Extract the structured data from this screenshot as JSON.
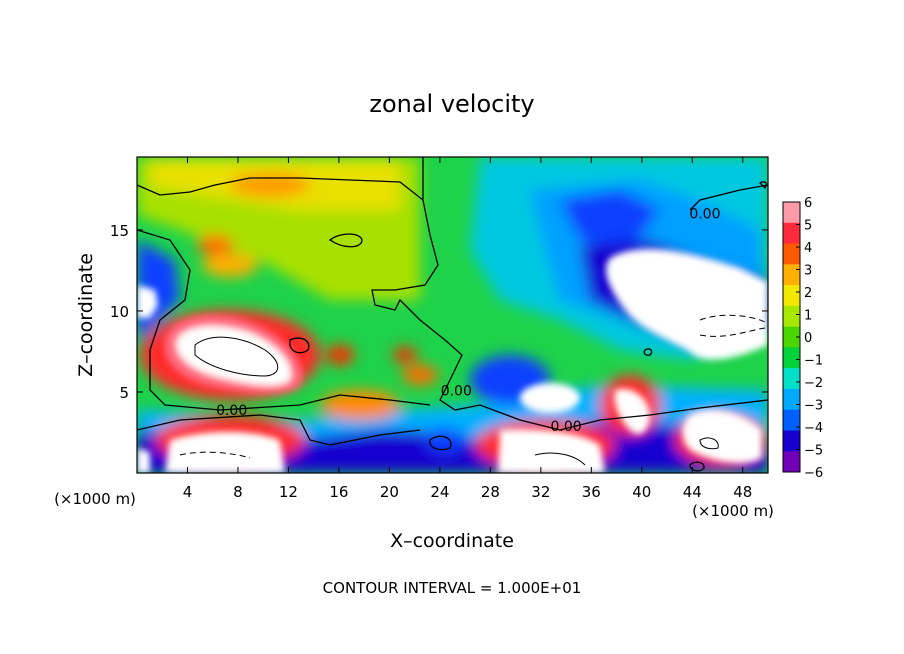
{
  "chart_data": {
    "type": "heatmap",
    "title": "zonal velocity",
    "xlabel": "X–coordinate",
    "ylabel": "Z–coordinate",
    "x_unit_left": "(×1000 m)",
    "x_unit_right": "(×1000 m)",
    "footer": "CONTOUR INTERVAL = 1.000E+01",
    "xlim": [
      0,
      50
    ],
    "ylim": [
      0,
      19.5
    ],
    "x_ticks": [
      4,
      8,
      12,
      16,
      20,
      24,
      28,
      32,
      36,
      40,
      44,
      48
    ],
    "y_ticks": [
      5,
      10,
      15
    ],
    "x_tick_labels": [
      "4",
      "8",
      "12",
      "16",
      "20",
      "24",
      "28",
      "32",
      "36",
      "40",
      "44",
      "48"
    ],
    "y_tick_labels": [
      "5",
      "10",
      "15"
    ],
    "colorbar": {
      "range": [
        -6,
        6
      ],
      "tick_labels": [
        "6",
        "5",
        "4",
        "3",
        "2",
        "1",
        "0",
        "−1",
        "−2",
        "−3",
        "−4",
        "−5",
        "−6"
      ],
      "colors": [
        "#ff9aa8",
        "#ff2a3a",
        "#ff5a00",
        "#ffb000",
        "#f2e800",
        "#a8e800",
        "#4cd600",
        "#00d23c",
        "#00e0c8",
        "#00a8ff",
        "#0060ff",
        "#1800d0",
        "#7000b8"
      ]
    },
    "contour_labels": [
      {
        "text": "0.00",
        "x": 45,
        "y": 16
      },
      {
        "text": "0.00",
        "x": 7.5,
        "y": 3.9
      },
      {
        "text": "0.00",
        "x": 34,
        "y": 2.9
      },
      {
        "text": "0.00",
        "x": 25.3,
        "y": 5.1
      }
    ],
    "features": [
      {
        "kind": "max",
        "x": 8,
        "y": 7.8,
        "value": 6
      },
      {
        "kind": "min",
        "x": 44,
        "y": 9.5,
        "value": -6
      },
      {
        "kind": "max",
        "x": 39,
        "y": 3,
        "value": 6
      },
      {
        "kind": "max",
        "x": 33,
        "y": 1,
        "value": 6
      },
      {
        "kind": "max",
        "x": 46,
        "y": 1.5,
        "value": 6
      },
      {
        "kind": "min",
        "x": 32,
        "y": 4.8,
        "value": -6
      },
      {
        "kind": "max",
        "x": 7,
        "y": 1.2,
        "value": 6
      },
      {
        "kind": "min",
        "x": 1,
        "y": 10.8,
        "value": -6
      }
    ]
  }
}
